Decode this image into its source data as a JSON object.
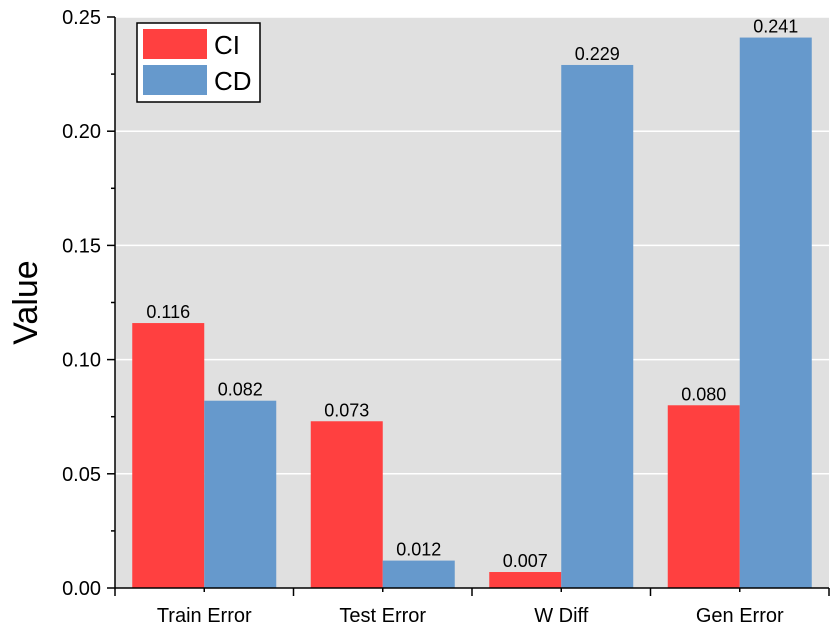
{
  "chart_data": {
    "type": "bar",
    "title": "",
    "xlabel": "",
    "ylabel": "Value",
    "categories": [
      "Train Error",
      "Test Error",
      "W Diff",
      "Gen Error"
    ],
    "series": [
      {
        "name": "CI",
        "values": [
          0.116,
          0.073,
          0.007,
          0.08
        ],
        "labels": [
          "0.116",
          "0.073",
          "0.007",
          "0.080"
        ],
        "color": "#FF4040"
      },
      {
        "name": "CD",
        "values": [
          0.082,
          0.012,
          0.229,
          0.241
        ],
        "labels": [
          "0.082",
          "0.012",
          "0.229",
          "0.241"
        ],
        "color": "#6699CC"
      }
    ],
    "ylim": [
      0,
      0.25
    ],
    "yticks": [
      0.0,
      0.05,
      0.1,
      0.15,
      0.2,
      0.25
    ],
    "ytick_labels": [
      "0.00",
      "0.05",
      "0.10",
      "0.15",
      "0.20",
      "0.25"
    ],
    "grid": true,
    "background": "#E0E0E0",
    "legend_position": "top-left"
  }
}
